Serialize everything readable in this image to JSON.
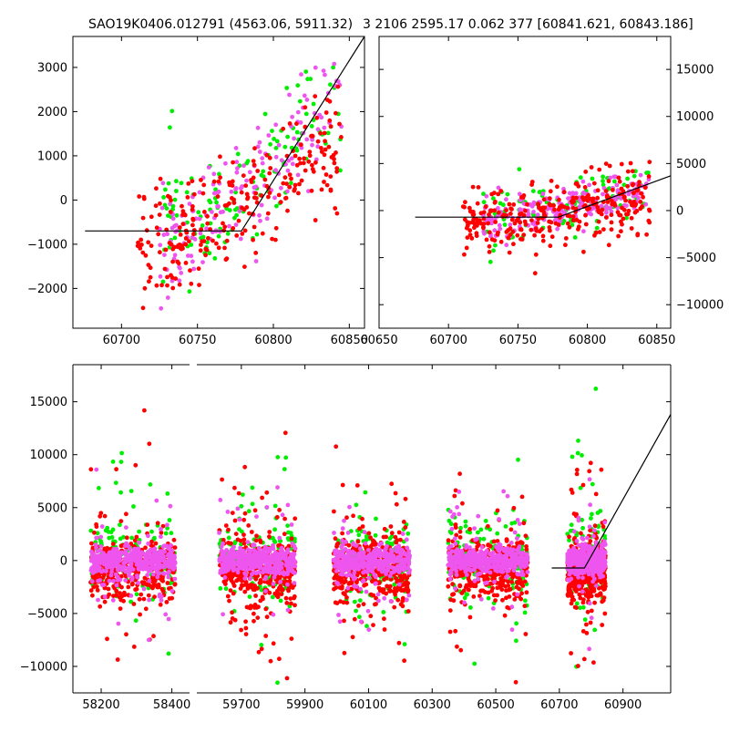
{
  "title": {
    "left": "SAO19K0406.012791 (4563.06, 5911.32)",
    "right": "3 2106 2595.17 0.062 377 [60841.621, 60843.186]"
  },
  "colors": {
    "green": "#00ee00",
    "red": "#ff0000",
    "magenta": "#ee55ee",
    "line": "#000000"
  },
  "chart_data": [
    {
      "id": "top-left",
      "type": "scatter",
      "xlim": [
        60668,
        60860
      ],
      "ylim": [
        -2900,
        3700
      ],
      "xticks": [
        60700,
        60750,
        60800,
        60850
      ],
      "yticks": [
        -2000,
        -1000,
        0,
        1000,
        2000,
        3000
      ],
      "yaxis_side": "left",
      "model_line": {
        "x": [
          60676,
          60779,
          60860
        ],
        "y": [
          -700,
          -700,
          3700
        ]
      },
      "series": [
        {
          "name": "green",
          "color": "#00ee00",
          "xrange": [
            60725,
            60845
          ],
          "center": 300,
          "trend": 25,
          "spread": 700,
          "count": 130,
          "seed": 11
        },
        {
          "name": "magenta",
          "color": "#ee55ee",
          "xrange": [
            60725,
            60845
          ],
          "center": 100,
          "trend": 30,
          "spread": 700,
          "count": 160,
          "seed": 12
        },
        {
          "name": "red",
          "color": "#ff0000",
          "xrange": [
            60710,
            60845
          ],
          "center": -300,
          "trend": 20,
          "spread": 650,
          "count": 260,
          "seed": 13
        }
      ]
    },
    {
      "id": "top-right",
      "type": "scatter",
      "xlim": [
        60650,
        60860
      ],
      "ylim": [
        -12500,
        18500
      ],
      "xticks": [
        60650,
        60700,
        60750,
        60800,
        60850
      ],
      "yticks": [
        -10000,
        -5000,
        0,
        5000,
        10000,
        15000
      ],
      "yaxis_side": "right",
      "model_line": {
        "x": [
          60676,
          60779,
          60860
        ],
        "y": [
          -700,
          -700,
          3700
        ]
      },
      "series": [
        {
          "name": "green",
          "color": "#00ee00",
          "xrange": [
            60725,
            60845
          ],
          "center": 300,
          "trend": 25,
          "spread": 1600,
          "count": 110,
          "seed": 21
        },
        {
          "name": "magenta",
          "color": "#ee55ee",
          "xrange": [
            60725,
            60845
          ],
          "center": 100,
          "trend": 30,
          "spread": 1000,
          "count": 220,
          "seed": 22
        },
        {
          "name": "red",
          "color": "#ff0000",
          "xrange": [
            60710,
            60845
          ],
          "center": -300,
          "trend": 20,
          "spread": 1700,
          "count": 300,
          "seed": 23
        }
      ]
    },
    {
      "id": "bottom",
      "type": "scatter",
      "ylim": [
        -12500,
        18500
      ],
      "yticks": [
        -10000,
        -5000,
        0,
        5000,
        10000,
        15000
      ],
      "yaxis_side": "left",
      "xticks": [
        "58200",
        "58400",
        "59700",
        "59900",
        "60100",
        "60300",
        "60500",
        "60700",
        "60900"
      ],
      "segments": [
        {
          "xlim": [
            58120,
            58450
          ],
          "xticks": [
            58200,
            58400
          ]
        },
        {
          "xlim": [
            59560,
            61050
          ],
          "xticks": [
            59700,
            59900,
            60100,
            60300,
            60500,
            60700,
            60900
          ]
        }
      ],
      "model_line": {
        "x": [
          60676,
          60779,
          61050
        ],
        "y": [
          -700,
          -700,
          13800
        ]
      },
      "clusters": [
        {
          "x": [
            58170,
            58410
          ],
          "seg": 0
        },
        {
          "x": [
            59630,
            59870
          ],
          "seg": 1
        },
        {
          "x": [
            59990,
            60230
          ],
          "seg": 1
        },
        {
          "x": [
            60350,
            60600
          ],
          "seg": 1
        },
        {
          "x": [
            60725,
            60845
          ],
          "seg": 1
        }
      ]
    }
  ]
}
